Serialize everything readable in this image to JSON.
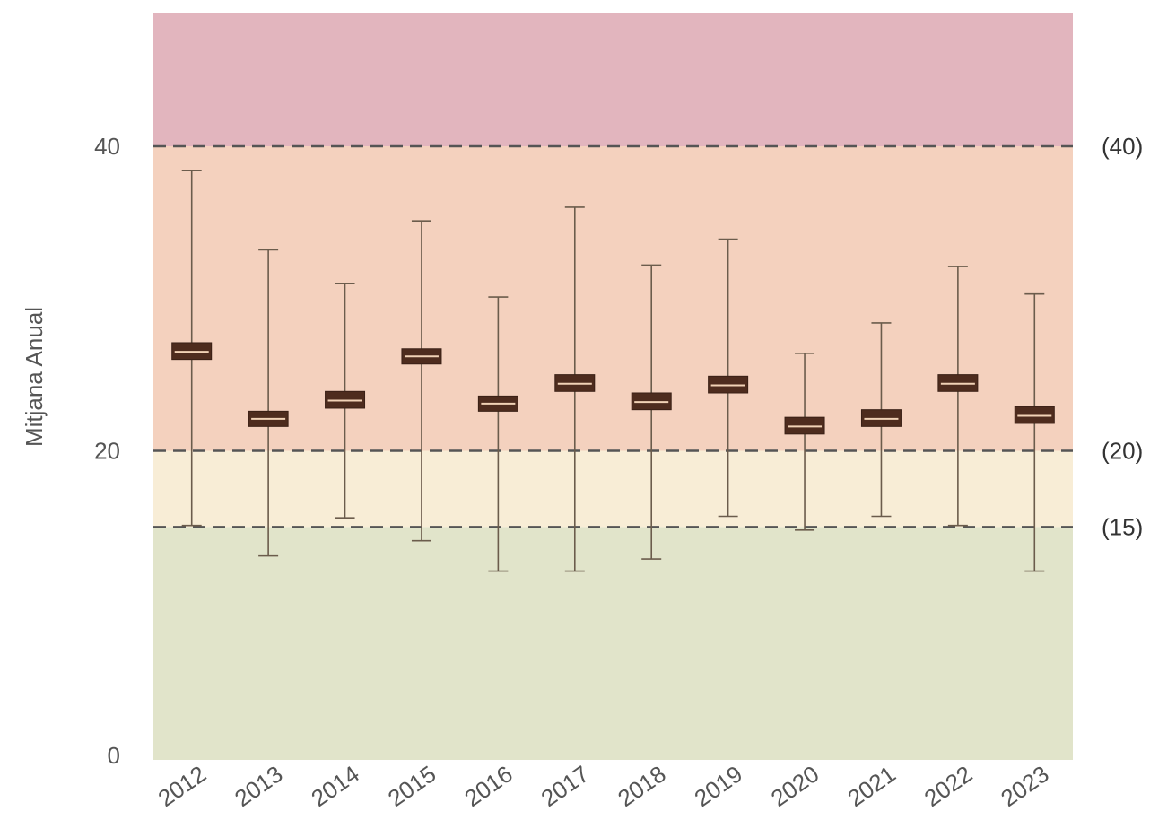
{
  "chart_data": {
    "type": "box",
    "title": "",
    "xlabel": "",
    "ylabel": "Mitjana Anual",
    "ylim": [
      0,
      49
    ],
    "yticks": [
      {
        "value": 0,
        "label": "0"
      },
      {
        "value": 20,
        "label": "20"
      },
      {
        "value": 40,
        "label": "40"
      }
    ],
    "grid": false,
    "bands": [
      {
        "from": 0,
        "to": 15,
        "color": "#e1e4ca"
      },
      {
        "from": 15,
        "to": 20,
        "color": "#f8edd6"
      },
      {
        "from": 20,
        "to": 40,
        "color": "#f4d1be"
      },
      {
        "from": 40,
        "to": 49,
        "color": "#e2b5be"
      }
    ],
    "reference_lines": [
      {
        "value": 40,
        "label": "(40)"
      },
      {
        "value": 20,
        "label": "(20)"
      },
      {
        "value": 15,
        "label": "(15)"
      }
    ],
    "categories": [
      "2012",
      "2013",
      "2014",
      "2015",
      "2016",
      "2017",
      "2018",
      "2019",
      "2020",
      "2021",
      "2022",
      "2023"
    ],
    "boxes": [
      {
        "min": 15.1,
        "q1": 26.0,
        "median": 26.5,
        "q3": 27.1,
        "max": 38.4
      },
      {
        "min": 13.1,
        "q1": 21.6,
        "median": 22.1,
        "q3": 22.6,
        "max": 33.2
      },
      {
        "min": 15.6,
        "q1": 22.8,
        "median": 23.3,
        "q3": 23.9,
        "max": 31.0
      },
      {
        "min": 14.1,
        "q1": 25.7,
        "median": 26.2,
        "q3": 26.7,
        "max": 35.1
      },
      {
        "min": 12.1,
        "q1": 22.6,
        "median": 23.1,
        "q3": 23.6,
        "max": 30.1
      },
      {
        "min": 12.1,
        "q1": 23.9,
        "median": 24.4,
        "q3": 25.0,
        "max": 36.0
      },
      {
        "min": 12.9,
        "q1": 22.7,
        "median": 23.2,
        "q3": 23.8,
        "max": 32.2
      },
      {
        "min": 15.7,
        "q1": 23.8,
        "median": 24.3,
        "q3": 24.9,
        "max": 33.9
      },
      {
        "min": 14.8,
        "q1": 21.1,
        "median": 21.6,
        "q3": 22.2,
        "max": 26.4
      },
      {
        "min": 15.7,
        "q1": 21.6,
        "median": 22.1,
        "q3": 22.7,
        "max": 28.4
      },
      {
        "min": 15.1,
        "q1": 23.9,
        "median": 24.4,
        "q3": 25.0,
        "max": 32.1
      },
      {
        "min": 12.1,
        "q1": 21.8,
        "median": 22.3,
        "q3": 22.9,
        "max": 30.3
      }
    ]
  },
  "colors": {
    "box_fill": "#4e2c1e",
    "median_line": "#f1d2b6",
    "whisker": "#6b5c4c",
    "ref_line": "#555555"
  }
}
